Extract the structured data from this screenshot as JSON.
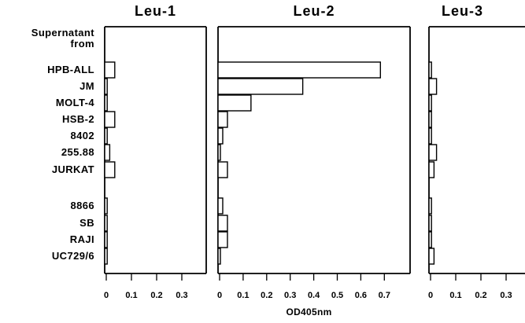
{
  "chart_data": {
    "type": "bar",
    "orientation": "horizontal",
    "row_header": [
      "Supernatant",
      "from"
    ],
    "categories": [
      "HPB-ALL",
      "JM",
      "MOLT-4",
      "HSB-2",
      "8402",
      "255.88",
      "JURKAT",
      "8866",
      "SB",
      "RAJI",
      "UC729/6"
    ],
    "xlabel": "OD405nm",
    "grid": false,
    "panels": [
      {
        "title": "Leu-1",
        "xlim": [
          0,
          0.4
        ],
        "ticks": [
          "0",
          "0.1",
          "0.2",
          "0.3"
        ],
        "values": [
          0.04,
          0.01,
          0.01,
          0.04,
          0.01,
          0.02,
          0.04,
          0.01,
          0.01,
          0.01,
          0.01
        ]
      },
      {
        "title": "Leu-2",
        "xlim": [
          0,
          0.8
        ],
        "ticks": [
          "0",
          "0.1",
          "0.2",
          "0.3",
          "0.4",
          "0.5",
          "0.6",
          "0.7"
        ],
        "values": [
          0.69,
          0.36,
          0.14,
          0.04,
          0.02,
          0.01,
          0.04,
          0.02,
          0.04,
          0.04,
          0.01
        ]
      },
      {
        "title": "Leu-3",
        "xlim": [
          0,
          0.4
        ],
        "ticks": [
          "0",
          "0.1",
          "0.2",
          "0.3"
        ],
        "values": [
          0.01,
          0.03,
          0.01,
          0.01,
          0.01,
          0.03,
          0.02,
          0.01,
          0.01,
          0.01,
          0.02
        ]
      }
    ]
  }
}
